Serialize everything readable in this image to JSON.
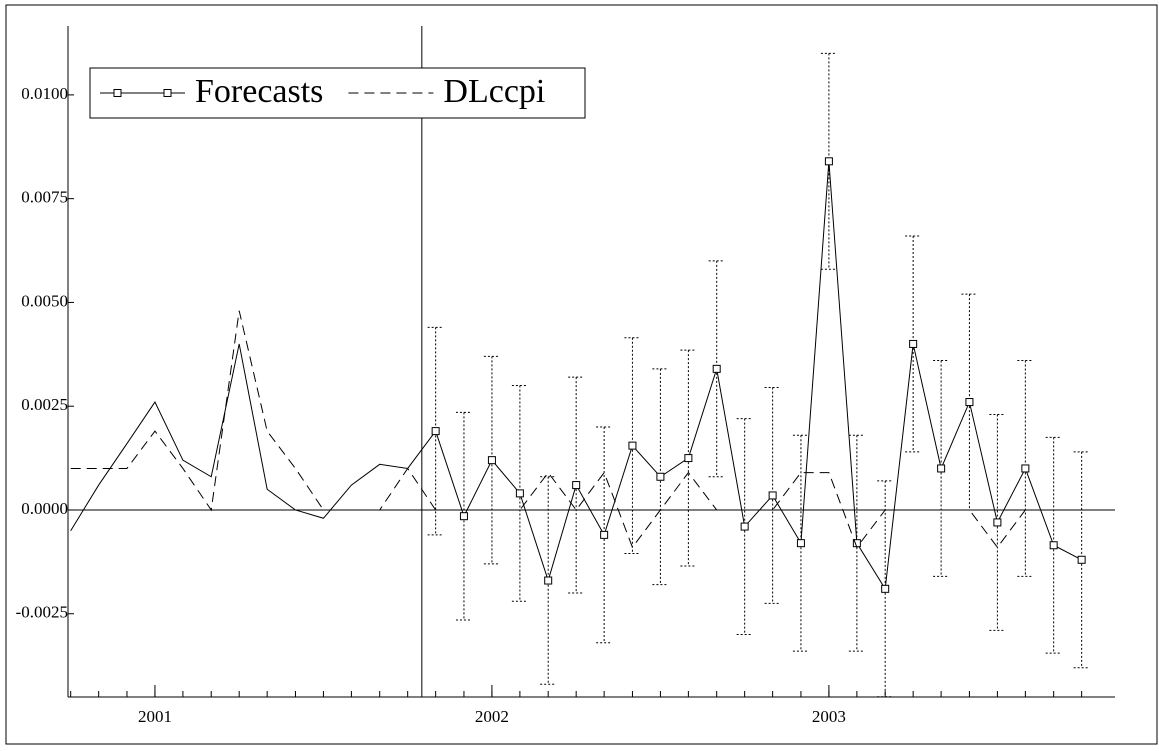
{
  "chart_data": {
    "type": "line",
    "x": [
      2000.75,
      2000.833,
      2000.917,
      2001,
      2001.083,
      2001.167,
      2001.25,
      2001.333,
      2001.417,
      2001.5,
      2001.583,
      2001.667,
      2001.75,
      2001.833,
      2001.917,
      2002,
      2002.083,
      2002.167,
      2002.25,
      2002.333,
      2002.417,
      2002.5,
      2002.583,
      2002.667,
      2002.75,
      2002.833,
      2002.917,
      2003,
      2003.083,
      2003.167,
      2003.25,
      2003.333,
      2003.417,
      2003.5,
      2003.583,
      2003.667,
      2003.75
    ],
    "series": [
      {
        "name": "Forecasts",
        "color": "#000000",
        "dash": false,
        "marker": "square",
        "values": [
          -0.0005,
          0.0006,
          0.0016,
          0.0026,
          0.0012,
          0.0008,
          0.004,
          0.0005,
          0.0,
          -0.0002,
          0.0006,
          0.0011,
          0.001,
          0.0019,
          -0.00015,
          0.0012,
          0.0004,
          -0.0017,
          0.0006,
          -0.0006,
          0.00155,
          0.0008,
          0.00125,
          0.0034,
          -0.0004,
          0.00035,
          -0.0008,
          0.0084,
          -0.0008,
          -0.0019,
          0.004,
          0.001,
          0.0026,
          -0.0003,
          0.001,
          -0.00085,
          -0.0012
        ],
        "errors": [
          null,
          null,
          null,
          null,
          null,
          null,
          null,
          null,
          null,
          null,
          null,
          null,
          null,
          0.0025,
          0.0025,
          0.0025,
          0.0026,
          0.0025,
          0.0026,
          0.0026,
          0.0026,
          0.0026,
          0.0026,
          0.0026,
          0.0026,
          0.0026,
          0.0026,
          0.0026,
          0.0026,
          0.0026,
          0.0026,
          0.0026,
          0.0026,
          0.0026,
          0.0026,
          0.0026,
          0.0026
        ]
      },
      {
        "name": "DLccpi",
        "color": "#000000",
        "dash": true,
        "values": [
          0.001,
          0.001,
          0.001,
          0.0019,
          0.001,
          0.0,
          0.0048,
          0.0019,
          0.001,
          0.0,
          0.0,
          0.0,
          0.001,
          0.0,
          0.0,
          0.0,
          0.0,
          0.0009,
          0.0,
          0.0009,
          -0.0009,
          0.0,
          0.0009,
          0.0,
          0.0,
          0.0,
          0.0009,
          0.0009,
          -0.0009,
          0.0,
          0.0,
          0.0,
          0.0,
          -0.0009,
          0.0,
          null,
          null
        ]
      }
    ],
    "forecast_start": 2001.792,
    "xlim": [
      2000.742,
      2003.849
    ],
    "xticks": [
      2001,
      2002,
      2003
    ],
    "ylim": [
      -0.004506,
      0.01166
    ],
    "yticks": [
      {
        "value": 0.01,
        "label": "0.0100"
      },
      {
        "value": 0.0075,
        "label": "0.0075"
      },
      {
        "value": 0.005,
        "label": "0.0050"
      },
      {
        "value": 0.0025,
        "label": "0.0025"
      },
      {
        "value": 0,
        "label": "0.0000"
      },
      {
        "value": -0.0025,
        "label": "-0.0025"
      }
    ],
    "legend": "upper left"
  }
}
